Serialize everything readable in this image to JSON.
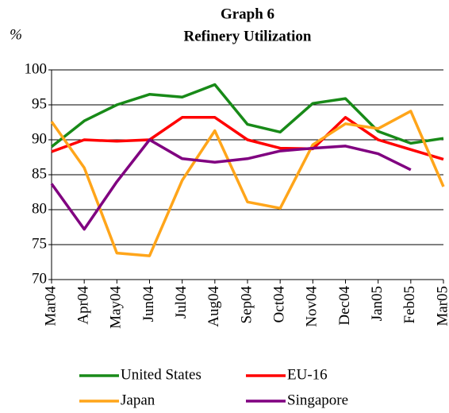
{
  "chart_data": {
    "type": "line",
    "title": "Graph 6",
    "subtitle": "Refinery Utilization",
    "y_label": "%",
    "categories": [
      "Mar04",
      "Apr04",
      "May04",
      "Jun04",
      "Jul04",
      "Aug04",
      "Sep04",
      "Oct04",
      "Nov04",
      "Dec04",
      "Jan05",
      "Feb05",
      "Mar05"
    ],
    "series": [
      {
        "name": "United States",
        "color": "#188a18",
        "values": [
          89,
          92.7,
          95,
          96.5,
          96.1,
          97.9,
          92.2,
          91.1,
          95.2,
          95.9,
          91.2,
          89.5,
          90.2
        ]
      },
      {
        "name": "EU-16",
        "color": "#ff0000",
        "values": [
          88.3,
          90,
          89.8,
          90,
          93.2,
          93.2,
          90,
          88.8,
          88.7,
          93.2,
          90,
          88.6,
          87.2
        ]
      },
      {
        "name": "Japan",
        "color": "#ffa51a",
        "values": [
          92.6,
          86,
          73.8,
          73.4,
          84.2,
          91.3,
          81.1,
          80.2,
          89.3,
          92.3,
          91.6,
          94.1,
          83.3
        ]
      },
      {
        "name": "Singapore",
        "color": "#800080",
        "values": [
          83.7,
          77.2,
          84,
          90,
          87.3,
          86.8,
          87.3,
          88.4,
          88.8,
          89.1,
          88,
          85.7,
          null
        ]
      }
    ],
    "ylim": [
      70,
      100
    ],
    "yticks": [
      70,
      75,
      80,
      85,
      90,
      95,
      100
    ],
    "grid": true
  }
}
